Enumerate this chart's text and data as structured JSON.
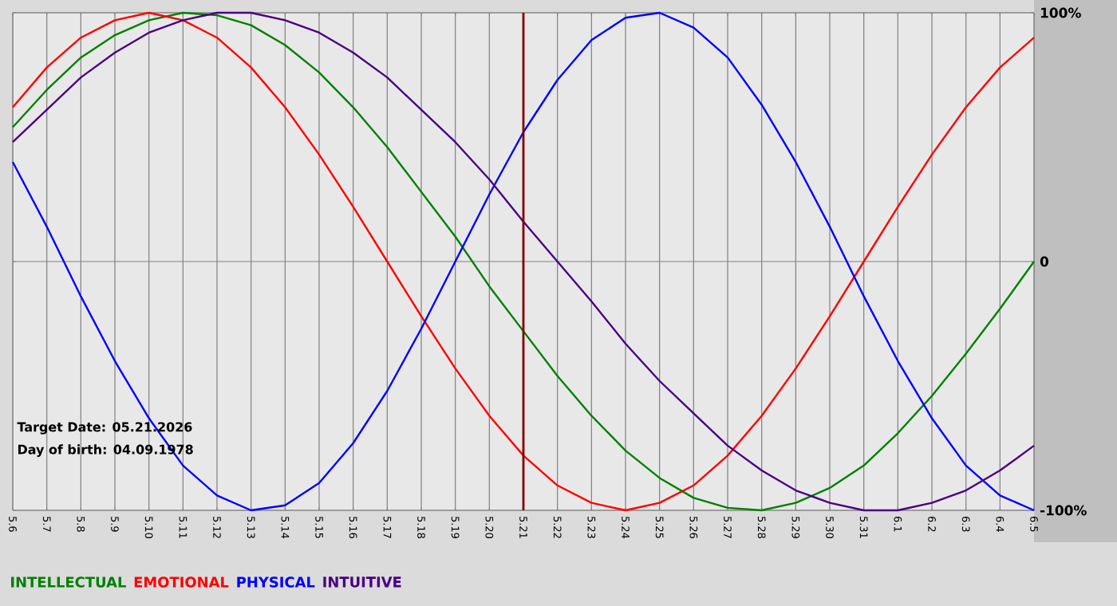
{
  "chart_data": {
    "type": "line",
    "categories": [
      "5.6",
      "5.7",
      "5.8",
      "5.9",
      "5.10",
      "5.11",
      "5.12",
      "5.13",
      "5.14",
      "5.15",
      "5.16",
      "5.17",
      "5.18",
      "5.19",
      "5.20",
      "5.21",
      "5.22",
      "5.23",
      "5.24",
      "5.25",
      "5.26",
      "5.27",
      "5.28",
      "5.29",
      "5.30",
      "5.31",
      "6.1",
      "6.2",
      "6.3",
      "6.4",
      "6.5"
    ],
    "series": [
      {
        "name": "INTELLECTUAL",
        "color": "#008000",
        "values": [
          54,
          69,
          82,
          91,
          97,
          100,
          99,
          95,
          87,
          76,
          62,
          46,
          28,
          10,
          -10,
          -28,
          -46,
          -62,
          -76,
          -87,
          -95,
          -99,
          -100,
          -97,
          -91,
          -82,
          -69,
          -54,
          -37,
          -19,
          0
        ]
      },
      {
        "name": "EMOTIONAL",
        "color": "#ff0000",
        "values": [
          62,
          78,
          90,
          97,
          100,
          97,
          90,
          78,
          62,
          43,
          22,
          0,
          -22,
          -43,
          -62,
          -78,
          -90,
          -97,
          -100,
          -97,
          -90,
          -78,
          -62,
          -43,
          -22,
          0,
          22,
          43,
          62,
          78,
          90
        ]
      },
      {
        "name": "PHYSICAL",
        "color": "#0000ff",
        "values": [
          40,
          14,
          -14,
          -40,
          -63,
          -82,
          -94,
          -100,
          -98,
          -89,
          -73,
          -52,
          -27,
          0,
          27,
          52,
          73,
          89,
          98,
          100,
          94,
          82,
          63,
          40,
          14,
          -14,
          -40,
          -63,
          -82,
          -94,
          -100
        ]
      },
      {
        "name": "INTUITIVE",
        "color": "#4b0082",
        "values": [
          48,
          61,
          74,
          84,
          92,
          97,
          100,
          100,
          97,
          92,
          84,
          74,
          61,
          48,
          33,
          16,
          0,
          -16,
          -33,
          -48,
          -61,
          -74,
          -84,
          -92,
          -97,
          -100,
          -100,
          -97,
          -92,
          -84,
          -74
        ]
      }
    ],
    "ylim": [
      -100,
      100
    ],
    "yticks": [
      {
        "value": -100,
        "label": "-100%"
      },
      0,
      {
        "value": 100,
        "label": "100%"
      }
    ],
    "grid": true,
    "legend": "bottom",
    "ref_lines": [
      {
        "axis": "x",
        "value": "5.21",
        "color": "#800000"
      }
    ],
    "annotations": [
      "Target Date: 05.21.2026",
      "Day of birth: 04.09.1978"
    ]
  }
}
